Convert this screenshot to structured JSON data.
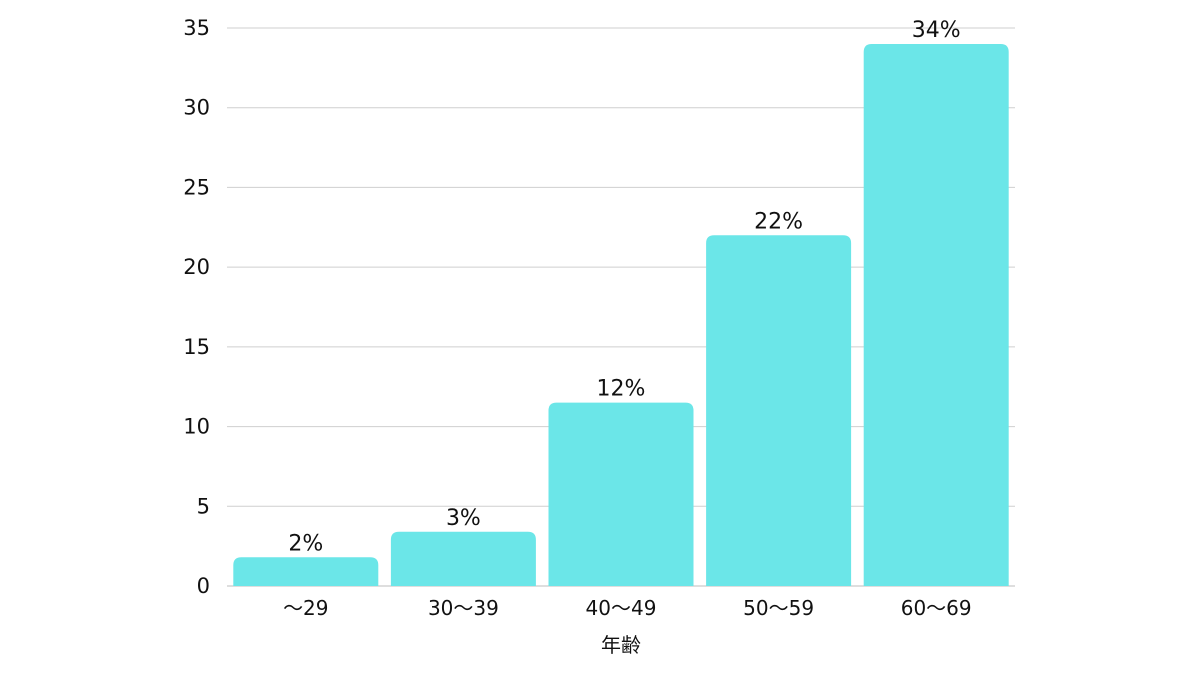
{
  "chart_data": {
    "type": "bar",
    "title": "",
    "xlabel": "年齢",
    "ylabel": "",
    "categories": [
      "～29",
      "30～39",
      "40～49",
      "50～59",
      "60～69"
    ],
    "values": [
      1.8,
      3.4,
      11.5,
      22.0,
      34.0
    ],
    "data_labels": [
      "2%",
      "3%",
      "12%",
      "22%",
      "34%"
    ],
    "ylim": [
      0,
      35
    ],
    "yticks": [
      "0",
      "5",
      "10",
      "15",
      "20",
      "25",
      "30",
      "35"
    ],
    "grid": true,
    "legend": "none",
    "bar_color": "#6be6e8"
  }
}
